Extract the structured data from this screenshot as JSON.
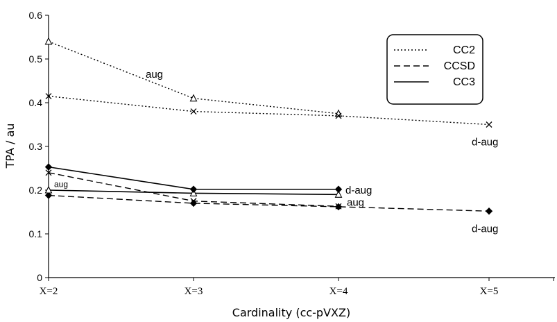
{
  "chart_data": {
    "type": "line",
    "title": "",
    "xlabel": "Cardinality (cc-pVXZ)",
    "ylabel": "TPA / au",
    "categories": [
      "X=2",
      "X=3",
      "X=4",
      "X=5"
    ],
    "ylim": [
      0,
      0.6
    ],
    "yticks": [
      "0",
      "0.1",
      "0.2",
      "0.3",
      "0.4",
      "0.5",
      "0.6"
    ],
    "grid": false,
    "legend": {
      "placement": "top-right",
      "entries": [
        {
          "label": "CC2",
          "style": "dotted"
        },
        {
          "label": "CCSD",
          "style": "dashed"
        },
        {
          "label": "CC3",
          "style": "solid"
        }
      ]
    },
    "series": [
      {
        "method": "CC2",
        "basis": "aug",
        "style": "dotted",
        "marker": "triangle",
        "values": [
          0.54,
          0.41,
          0.375,
          null
        ]
      },
      {
        "method": "CC2",
        "basis": "d-aug",
        "style": "dotted",
        "marker": "x",
        "values": [
          0.415,
          0.38,
          0.37,
          0.35
        ]
      },
      {
        "method": "CCSD",
        "basis": "aug",
        "style": "dashed",
        "marker": "x",
        "values": [
          0.24,
          0.175,
          0.163,
          null
        ]
      },
      {
        "method": "CCSD",
        "basis": "d-aug",
        "style": "dashed",
        "marker": "diamond",
        "values": [
          0.188,
          0.17,
          0.162,
          0.152
        ]
      },
      {
        "method": "CC3",
        "basis": "aug",
        "style": "solid",
        "marker": "triangle",
        "values": [
          0.2,
          0.193,
          0.19,
          null
        ]
      },
      {
        "method": "CC3",
        "basis": "d-aug",
        "style": "solid",
        "marker": "diamond",
        "values": [
          0.253,
          0.202,
          0.202,
          null
        ]
      }
    ],
    "annotations": [
      {
        "text": "aug",
        "near": "CC2 aug",
        "x": "X=2",
        "y": 0.465
      },
      {
        "text": "d-aug",
        "near": "CC2 d-aug",
        "x": "X=5",
        "y": 0.31
      },
      {
        "text": "aug",
        "near": "CCSD aug",
        "x": "X=2",
        "y": 0.215
      },
      {
        "text": "d-aug",
        "near": "CC3 d-aug",
        "x": "X=4",
        "y": 0.2
      },
      {
        "text": "aug",
        "near": "CC3 aug",
        "x": "X=4",
        "y": 0.172
      },
      {
        "text": "d-aug",
        "near": "CCSD d-aug",
        "x": "X=5",
        "y": 0.112
      }
    ]
  }
}
